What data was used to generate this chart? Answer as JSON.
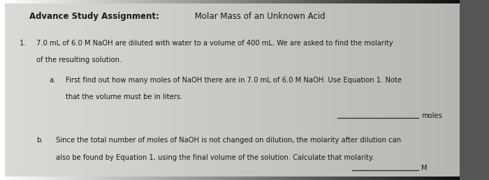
{
  "bg_left_color": "#b8b8b8",
  "bg_right_color": "#808080",
  "paper_color": "#d4d4d0",
  "title_bold": "Advance Study Assignment:",
  "title_normal": " Molar Mass of an Unknown Acid",
  "title_fontsize": 8.5,
  "q1_number": "1.",
  "q1_text": "7.0 mL of 6.0 M NaOH are diluted with water to a volume of 400 mL. We are asked to find the molarity",
  "q1_text2": "of the resulting solution.",
  "qa_label": "a.",
  "qa_text": "First find out how many moles of NaOH there are in 7.0 mL of 6.0 M NaOH. Use Equation 1. Note",
  "qa_text2": "that the volume must be in liters.",
  "qa_answer_label": "moles",
  "qb_label": "b.",
  "qb_text": "Since the total number of moles of NaOH is not changed on dilution, the molarity after dilution can",
  "qb_text2": "also be found by Equation 1, using the final volume of the solution. Calculate that molarity.",
  "qb_answer_label": "M",
  "text_color": "#1a1a1a",
  "text_fontsize": 7.2,
  "line_color": "#2a2a2a"
}
